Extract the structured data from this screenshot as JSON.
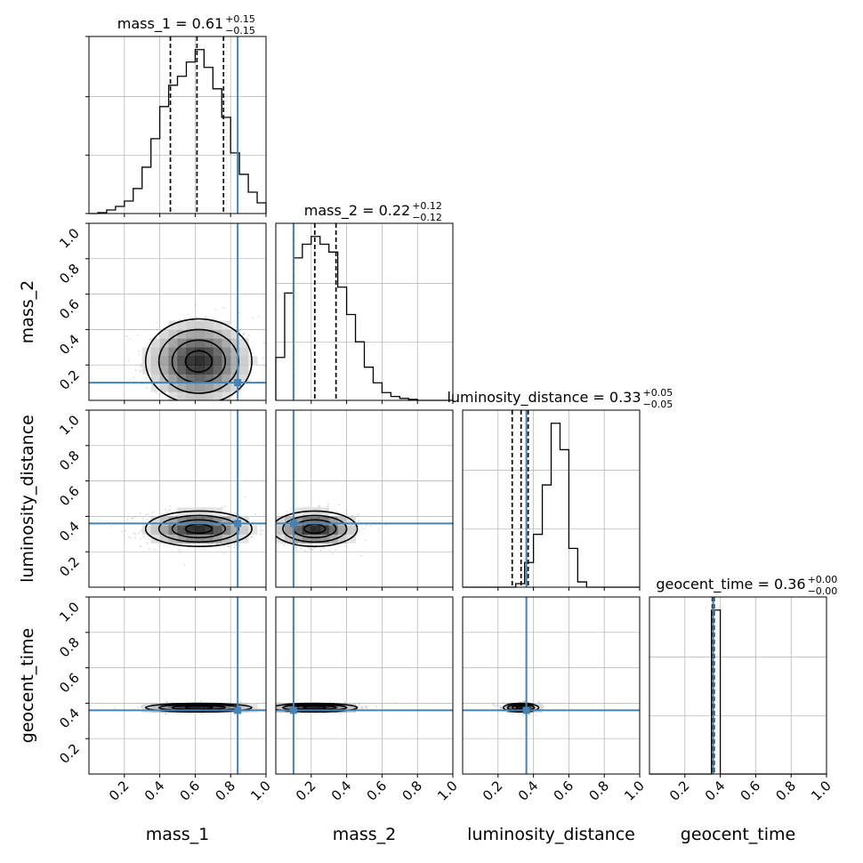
{
  "chart_data": {
    "type": "corner",
    "parameters": [
      "mass_1",
      "mass_2",
      "luminosity_distance",
      "geocent_time"
    ],
    "ranges": [
      [
        0,
        1
      ],
      [
        0,
        1
      ],
      [
        0,
        1
      ],
      [
        0,
        1
      ]
    ],
    "ticks": [
      "0.2",
      "0.4",
      "0.6",
      "0.8",
      "1.0"
    ],
    "grid": true,
    "colors": {
      "truth": "#4682b4",
      "hist": "#000000",
      "quantile": "#000000",
      "grid": "#b0b0b0"
    },
    "truths": [
      0.84,
      0.1,
      0.36,
      0.36
    ],
    "summaries": [
      {
        "param": "mass_1",
        "title_main": "mass_1 = 0.61",
        "up": "+0.15",
        "down": "−0.15",
        "median": 0.61,
        "lower": 0.46,
        "upper": 0.76
      },
      {
        "param": "mass_2",
        "title_main": "mass_2 = 0.22",
        "up": "+0.12",
        "down": "−0.12",
        "median": 0.22,
        "lower": 0.1,
        "upper": 0.34
      },
      {
        "param": "luminosity_distance",
        "title_main": "luminosity_distance = 0.33",
        "up": "+0.05",
        "down": "−0.05",
        "median": 0.33,
        "lower": 0.28,
        "upper": 0.37
      },
      {
        "param": "geocent_time",
        "title_main": "geocent_time = 0.36",
        "up": "+0.00",
        "down": "−0.00",
        "median": 0.36,
        "lower": 0.355,
        "upper": 0.365
      }
    ],
    "histograms": [
      {
        "param": "mass_1",
        "bin_edges_start": 0,
        "bin_width": 0.05,
        "counts": [
          0.0,
          0.005,
          0.02,
          0.04,
          0.07,
          0.14,
          0.26,
          0.42,
          0.6,
          0.72,
          0.77,
          0.85,
          0.92,
          0.82,
          0.7,
          0.54,
          0.34,
          0.22,
          0.12,
          0.06
        ]
      },
      {
        "param": "mass_2",
        "bin_edges_start": 0,
        "bin_width": 0.05,
        "counts": [
          0.22,
          0.55,
          0.73,
          0.8,
          0.84,
          0.8,
          0.76,
          0.58,
          0.44,
          0.3,
          0.17,
          0.09,
          0.04,
          0.02,
          0.01,
          0.005,
          0.0,
          0.0,
          0.0,
          0.0
        ]
      },
      {
        "param": "luminosity_distance",
        "bin_edges_start": 0,
        "bin_width": 0.05,
        "counts": [
          0.0,
          0.0,
          0.0,
          0.0,
          0.0,
          0.0,
          0.02,
          0.14,
          0.3,
          0.58,
          0.93,
          0.78,
          0.22,
          0.03,
          0.0,
          0.0,
          0.0,
          0.0,
          0.0,
          0.0
        ]
      },
      {
        "param": "geocent_time",
        "bin_edges_start": 0,
        "bin_width": 0.05,
        "counts": [
          0.0,
          0.0,
          0.0,
          0.0,
          0.0,
          0.0,
          0.0,
          0.92,
          0.0,
          0.0,
          0.0,
          0.0,
          0.0,
          0.0,
          0.0,
          0.0,
          0.0,
          0.0,
          0.0,
          0.0
        ]
      }
    ],
    "density_2d": [
      {
        "x": "mass_1",
        "y": "mass_2",
        "mean": [
          0.62,
          0.22
        ],
        "sd": [
          0.15,
          0.12
        ]
      },
      {
        "x": "mass_1",
        "y": "luminosity_distance",
        "mean": [
          0.62,
          0.33
        ],
        "sd": [
          0.15,
          0.05
        ]
      },
      {
        "x": "mass_2",
        "y": "luminosity_distance",
        "mean": [
          0.22,
          0.33
        ],
        "sd": [
          0.12,
          0.05
        ]
      },
      {
        "x": "mass_1",
        "y": "geocent_time",
        "mean": [
          0.62,
          0.375
        ],
        "sd": [
          0.15,
          0.012
        ]
      },
      {
        "x": "mass_2",
        "y": "geocent_time",
        "mean": [
          0.22,
          0.375
        ],
        "sd": [
          0.12,
          0.012
        ]
      },
      {
        "x": "luminosity_distance",
        "y": "geocent_time",
        "mean": [
          0.33,
          0.375
        ],
        "sd": [
          0.05,
          0.012
        ]
      }
    ]
  }
}
